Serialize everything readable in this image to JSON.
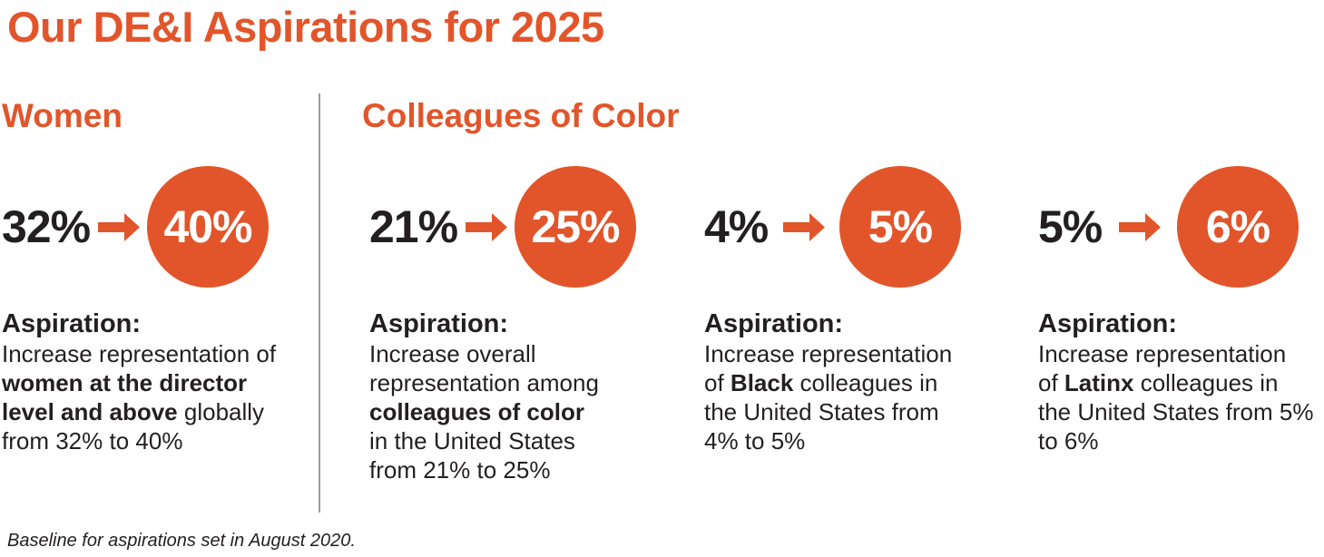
{
  "page": {
    "title": "Our DE&I Aspirations for 2025",
    "footnote": "Baseline for aspirations set in August 2020."
  },
  "colors": {
    "orange": "#E2552A",
    "text": "#231F20",
    "divider": "#9B9B9B"
  },
  "sections": [
    {
      "heading": "Women",
      "stats": [
        {
          "from": "32%",
          "to": "40%",
          "aspiration_label": "Aspiration:",
          "description": [
            [
              {
                "t": "Increase representation of",
                "b": false
              }
            ],
            [
              {
                "t": "women at the director",
                "b": true
              }
            ],
            [
              {
                "t": "level and above",
                "b": true
              },
              {
                "t": " globally",
                "b": false
              }
            ],
            [
              {
                "t": "from 32% to 40%",
                "b": false
              }
            ]
          ]
        }
      ]
    },
    {
      "heading": "Colleagues of Color",
      "stats": [
        {
          "from": "21%",
          "to": "25%",
          "aspiration_label": "Aspiration:",
          "description": [
            [
              {
                "t": "Increase overall",
                "b": false
              }
            ],
            [
              {
                "t": "representation among",
                "b": false
              }
            ],
            [
              {
                "t": "colleagues of color",
                "b": true
              }
            ],
            [
              {
                "t": "in the United States",
                "b": false
              }
            ],
            [
              {
                "t": "from 21% to 25%",
                "b": false
              }
            ]
          ]
        },
        {
          "from": "4%",
          "to": "5%",
          "aspiration_label": "Aspiration:",
          "description": [
            [
              {
                "t": "Increase representation",
                "b": false
              }
            ],
            [
              {
                "t": "of ",
                "b": false
              },
              {
                "t": "Black",
                "b": true
              },
              {
                "t": " colleagues in",
                "b": false
              }
            ],
            [
              {
                "t": "the United States from",
                "b": false
              }
            ],
            [
              {
                "t": "4% to 5%",
                "b": false
              }
            ]
          ]
        },
        {
          "from": "5%",
          "to": "6%",
          "aspiration_label": "Aspiration:",
          "description": [
            [
              {
                "t": "Increase representation",
                "b": false
              }
            ],
            [
              {
                "t": "of ",
                "b": false
              },
              {
                "t": "Latinx",
                "b": true
              },
              {
                "t": " colleagues in",
                "b": false
              }
            ],
            [
              {
                "t": "the United States from 5%",
                "b": false
              }
            ],
            [
              {
                "t": "to 6%",
                "b": false
              }
            ]
          ]
        }
      ]
    }
  ],
  "chart_data": {
    "type": "table",
    "title": "Our DE&I Aspirations for 2025",
    "unit": "%",
    "categories": [
      "Women at the director level and above (global)",
      "Colleagues of color (United States)",
      "Black colleagues (United States)",
      "Latinx colleagues (United States)"
    ],
    "series": [
      {
        "name": "Baseline (August 2020)",
        "values": [
          32,
          21,
          4,
          5
        ]
      },
      {
        "name": "2025 Aspiration",
        "values": [
          40,
          25,
          5,
          6
        ]
      }
    ],
    "notes": "Baseline for aspirations set in August 2020."
  }
}
